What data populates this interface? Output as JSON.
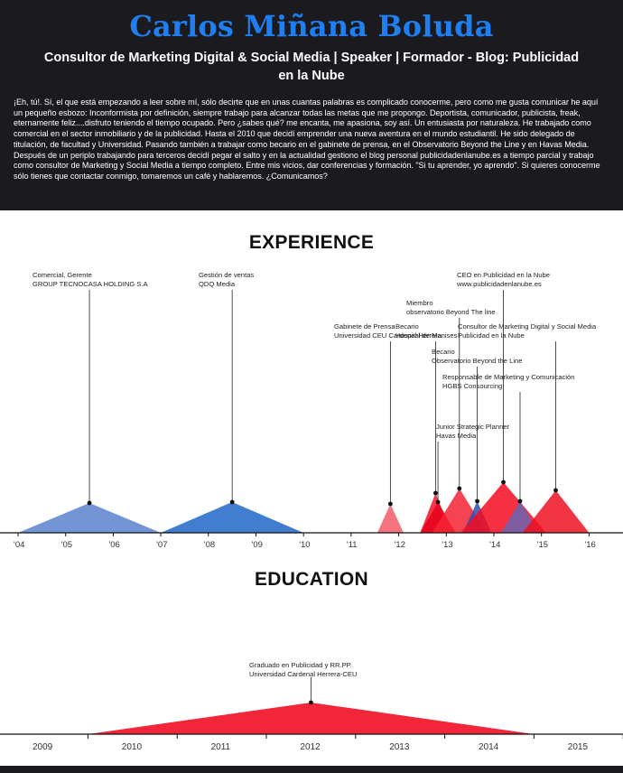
{
  "header": {
    "name": "Carlos Miñana Boluda",
    "tagline": "Consultor de Marketing Digital & Social Media | Speaker | Formador - Blog: Publicidad en la Nube",
    "bio": "¡Eh, tú!. Sí, el que está empezando a leer sobre mí, sólo decirte que en unas cuantas palabras es complicado conocerme, pero como me gusta comunicar he aquí un pequeño esbozo: Inconformista por definición, siempre trabajo para alcanzar todas las metas que me propongo. Deportista, comunicador, publicista, freak, eternamente feliz....disfruto teniendo el tiempo ocupado. Pero ¿sabes qué? me encanta, me apasiona, soy así. Un entusiasta por naturaleza. He trabajado como comercial en el sector inmobiliario y de la publicidad. Hasta el 2010 que decidí emprender una nueva aventura en el mundo estudiantil. He sido delegado de titulación, de facultad y Universidad. Pasando también a trabajar como becario en el gabinete de prensa, en el Observatorio Beyond the Line y en Havas Media. Después de un periplo trabajando para terceros decidí pegar el salto y en la actualidad gestiono el blog personal publicidadenlanube.es a tiempo parcial y trabajo como consultor de Marketing y Social Media a tiempo completo. Entre mis vicios, dar conferencias y formación. \"Si tu aprender, yo aprendo\". Si quieres conocerme sólo tienes que contactar conmigo, tomaremos un café y hablaremos. ¿Comunicamos?"
  },
  "experience": {
    "title": "EXPERIENCE",
    "years": [
      "'04",
      "'05",
      "'06",
      "'07",
      "'08",
      "'09",
      "'10",
      "'11",
      "'12",
      "'13",
      "'14",
      "'15",
      "'16"
    ],
    "items": [
      {
        "role": "Comercial, Gerente",
        "org": "GROUP TECNOCASA HOLDING S.A",
        "start": 2004.0,
        "end": 2007.0,
        "color": "#5a82cf"
      },
      {
        "role": "Gestión de ventas",
        "org": "QDQ Media",
        "start": 2007.0,
        "end": 2010.0,
        "color": "#2067c8"
      },
      {
        "role": "Becario",
        "org": "Hospital de Manises",
        "start": 2011.55,
        "end": 2012.1,
        "color": "#f25c6a"
      },
      {
        "role": "Gabinete de Prensa",
        "org": "Universidad CEU Cardenal Herrera",
        "start": 2012.45,
        "end": 2013.1,
        "color": "#f0142a"
      },
      {
        "role": "Junior Strategic Planner",
        "org": "Havas Media",
        "start": 2012.45,
        "end": 2013.2,
        "color": "#e8001a"
      },
      {
        "role": "Miembro",
        "org": "observatorio Beyond The line",
        "start": 2012.7,
        "end": 2013.85,
        "color": "#f52233"
      },
      {
        "role": "Becario",
        "org": "Observatorio Beyond the Line",
        "start": 2013.35,
        "end": 2013.95,
        "color": "#2f4fb0"
      },
      {
        "role": "CEO en Publicidad en la Nube",
        "org": "www.publicidadenlanube.es",
        "start": 2013.3,
        "end": 2015.1,
        "color": "#f40c1f"
      },
      {
        "role": "Responsable de Marketing y Comunicación",
        "org": "HGBS Consourcing",
        "start": 2014.15,
        "end": 2014.95,
        "color": "#6a63b2"
      },
      {
        "role": "Consultor de Marketing Digital y Social Media",
        "org": "Publicidad en la Nube",
        "start": 2014.6,
        "end": 2016.0,
        "color": "#ef1020"
      }
    ]
  },
  "education": {
    "title": "EDUCATION",
    "years": [
      "2009",
      "2010",
      "2011",
      "2012",
      "2013",
      "2014",
      "2015"
    ],
    "items": [
      {
        "role": "Graduado en Publicidad y RR.PP.",
        "org": "Universidad Cardenal Herrera-CEU",
        "start": 2009.5,
        "end": 2014.5,
        "color": "#f21a2e"
      }
    ]
  }
}
